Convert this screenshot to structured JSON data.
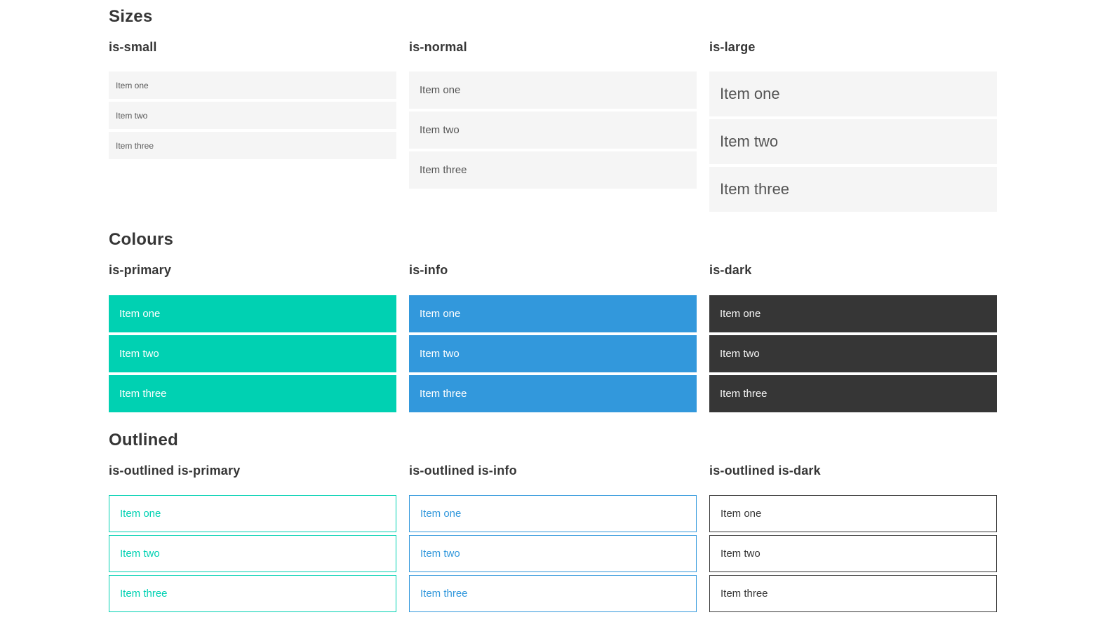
{
  "colors": {
    "primary": "#00d1b2",
    "info": "#3298dc",
    "dark": "#363636",
    "item_background": "#f5f5f5",
    "item_text": "#555555",
    "heading_text": "#363636",
    "colored_item_text": "#ffffff",
    "dark_item_text": "#f5f5f5",
    "page_background": "#ffffff"
  },
  "sections": [
    {
      "title": "Sizes",
      "groups": [
        {
          "heading": "is-small",
          "items": [
            "Item one",
            "Item two",
            "Item three"
          ]
        },
        {
          "heading": "is-normal",
          "items": [
            "Item one",
            "Item two",
            "Item three"
          ]
        },
        {
          "heading": "is-large",
          "items": [
            "Item one",
            "Item two",
            "Item three"
          ]
        }
      ]
    },
    {
      "title": "Colours",
      "groups": [
        {
          "heading": "is-primary",
          "items": [
            "Item one",
            "Item two",
            "Item three"
          ]
        },
        {
          "heading": "is-info",
          "items": [
            "Item one",
            "Item two",
            "Item three"
          ]
        },
        {
          "heading": "is-dark",
          "items": [
            "Item one",
            "Item two",
            "Item three"
          ]
        }
      ]
    },
    {
      "title": "Outlined",
      "groups": [
        {
          "heading": "is-outlined is-primary",
          "items": [
            "Item one",
            "Item two",
            "Item three"
          ]
        },
        {
          "heading": "is-outlined is-info",
          "items": [
            "Item one",
            "Item two",
            "Item three"
          ]
        },
        {
          "heading": "is-outlined is-dark",
          "items": [
            "Item one",
            "Item two",
            "Item three"
          ]
        }
      ]
    }
  ]
}
